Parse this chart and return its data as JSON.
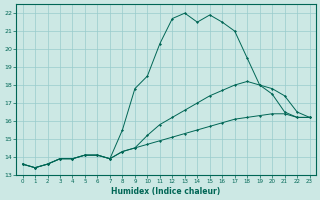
{
  "xlabel": "Humidex (Indice chaleur)",
  "bg_color": "#cce8e4",
  "grid_color": "#99cccc",
  "line_color": "#006655",
  "xlim": [
    -0.5,
    23.5
  ],
  "ylim": [
    13,
    22.5
  ],
  "xticks": [
    0,
    1,
    2,
    3,
    4,
    5,
    6,
    7,
    8,
    9,
    10,
    11,
    12,
    13,
    14,
    15,
    16,
    17,
    18,
    19,
    20,
    21,
    22,
    23
  ],
  "yticks": [
    13,
    14,
    15,
    16,
    17,
    18,
    19,
    20,
    21,
    22
  ],
  "line1_x": [
    0,
    1,
    2,
    3,
    4,
    5,
    6,
    7,
    8,
    9,
    10,
    11,
    12,
    13,
    14,
    15,
    16,
    17,
    18,
    19,
    20,
    21,
    22,
    23
  ],
  "line1_y": [
    13.6,
    13.4,
    13.6,
    13.9,
    13.9,
    14.1,
    14.1,
    13.9,
    15.5,
    17.8,
    18.5,
    20.3,
    21.7,
    22.0,
    21.5,
    21.9,
    21.5,
    21.0,
    19.5,
    18.0,
    17.5,
    16.5,
    16.2,
    16.2
  ],
  "line2_x": [
    0,
    1,
    2,
    3,
    4,
    5,
    6,
    7,
    8,
    9,
    10,
    11,
    12,
    13,
    14,
    15,
    16,
    17,
    18,
    19,
    20,
    21,
    22,
    23
  ],
  "line2_y": [
    13.6,
    13.4,
    13.6,
    13.9,
    13.9,
    14.1,
    14.1,
    13.9,
    14.3,
    14.5,
    15.2,
    15.8,
    16.2,
    16.6,
    17.0,
    17.4,
    17.7,
    18.0,
    18.2,
    18.0,
    17.8,
    17.4,
    16.5,
    16.2
  ],
  "line3_x": [
    0,
    1,
    2,
    3,
    4,
    5,
    6,
    7,
    8,
    9,
    10,
    11,
    12,
    13,
    14,
    15,
    16,
    17,
    18,
    19,
    20,
    21,
    22,
    23
  ],
  "line3_y": [
    13.6,
    13.4,
    13.6,
    13.9,
    13.9,
    14.1,
    14.1,
    13.9,
    14.3,
    14.5,
    14.7,
    14.9,
    15.1,
    15.3,
    15.5,
    15.7,
    15.9,
    16.1,
    16.2,
    16.3,
    16.4,
    16.4,
    16.2,
    16.2
  ]
}
